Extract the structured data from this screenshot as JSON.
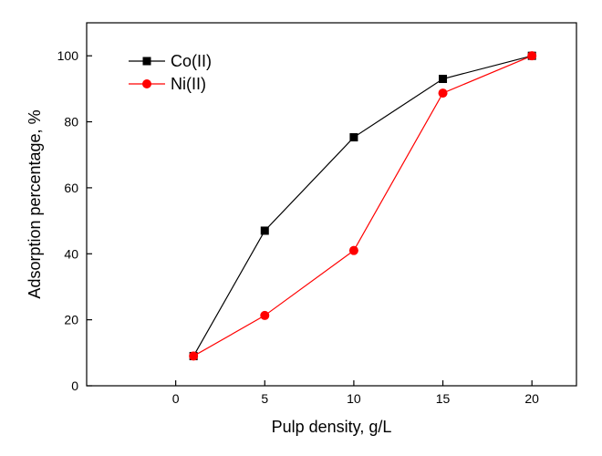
{
  "chart_data": {
    "type": "line",
    "xlabel": "Pulp density, g/L",
    "ylabel": "Adsorption percentage, %",
    "xlim": [
      -5,
      22.5
    ],
    "ylim": [
      0,
      110
    ],
    "xticks": [
      0,
      5,
      10,
      15,
      20
    ],
    "yticks": [
      0,
      20,
      40,
      60,
      80,
      100
    ],
    "grid": false,
    "legend_position": "top-left",
    "series": [
      {
        "name": "Co(II)",
        "color": "#000000",
        "marker": "square",
        "x": [
          1,
          5,
          10,
          15,
          20
        ],
        "y": [
          9,
          47,
          75.3,
          93,
          100
        ]
      },
      {
        "name": "Ni(II)",
        "color": "#ff0000",
        "marker": "circle",
        "x": [
          1,
          5,
          10,
          15,
          20
        ],
        "y": [
          9,
          21.3,
          41,
          88.7,
          100
        ]
      }
    ]
  }
}
